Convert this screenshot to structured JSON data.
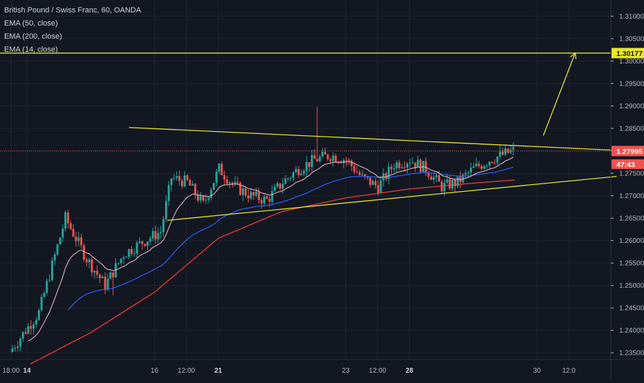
{
  "legend": {
    "symbol": "British Pound / Swiss Franc, 60, OANDA",
    "ema_50": "EMA (50, close)",
    "ema_200": "EMA (200, close)",
    "ema_14": "EMA (14, close)"
  },
  "colors": {
    "background": "#131722",
    "grid": "#1f2430",
    "up_candle": "#26a69a",
    "down_candle": "#ef5350",
    "ema_14": "#d7a9b0",
    "ema_50": "#2962ff",
    "ema_200": "#e53935",
    "drawings": "#e8e82a",
    "current_price_line": "#ef5350",
    "axis_text": "#b2b5be"
  },
  "price_badges": {
    "target": "1.30177",
    "last_price": "1.27995",
    "countdown": "47:43"
  },
  "chart_data": {
    "type": "candlestick",
    "title": "British Pound / Swiss Franc, 60, OANDA",
    "xlabel": "",
    "ylabel": "",
    "x_ticks": [
      {
        "label": "18:00",
        "day": 0.75,
        "bold": false
      },
      {
        "label": "14",
        "day": 1,
        "bold": true
      },
      {
        "label": "16",
        "day": 3,
        "bold": false
      },
      {
        "label": "12:00",
        "day": 3.5,
        "bold": false
      },
      {
        "label": "21",
        "day": 4,
        "bold": true
      },
      {
        "label": "23",
        "day": 6,
        "bold": false
      },
      {
        "label": "12:00",
        "day": 6.5,
        "bold": false
      },
      {
        "label": "28",
        "day": 7,
        "bold": true
      },
      {
        "label": "30",
        "day": 9,
        "bold": false
      },
      {
        "label": "12:0",
        "day": 9.5,
        "bold": false
      }
    ],
    "y_ticks": [
      "1.31000",
      "1.30500",
      "1.30000",
      "1.29500",
      "1.29000",
      "1.28500",
      "1.28000",
      "1.27500",
      "1.27000",
      "1.26500",
      "1.26000",
      "1.25500",
      "1.25000",
      "1.24500",
      "1.24000",
      "1.23500"
    ],
    "ylim": [
      1.2335,
      1.3136
    ],
    "candles": {
      "count": 190,
      "start_day": 0.75,
      "end_day": 8.65,
      "keypoints": [
        [
          0,
          1.236
        ],
        [
          10,
          1.244
        ],
        [
          20,
          1.265
        ],
        [
          28,
          1.256
        ],
        [
          35,
          1.25
        ],
        [
          42,
          1.257
        ],
        [
          50,
          1.26
        ],
        [
          56,
          1.262
        ],
        [
          60,
          1.274
        ],
        [
          66,
          1.273
        ],
        [
          72,
          1.268
        ],
        [
          78,
          1.276
        ],
        [
          84,
          1.272
        ],
        [
          90,
          1.27
        ],
        [
          96,
          1.269
        ],
        [
          102,
          1.273
        ],
        [
          108,
          1.276
        ],
        [
          114,
          1.278
        ],
        [
          120,
          1.279
        ],
        [
          126,
          1.278
        ],
        [
          132,
          1.274
        ],
        [
          138,
          1.272
        ],
        [
          144,
          1.277
        ],
        [
          150,
          1.278
        ],
        [
          156,
          1.276
        ],
        [
          162,
          1.272
        ],
        [
          168,
          1.273
        ],
        [
          174,
          1.276
        ],
        [
          180,
          1.278
        ],
        [
          189,
          1.28005
        ]
      ]
    },
    "ema_14": {
      "name": "EMA (14, close)",
      "period": 14
    },
    "ema_50": {
      "name": "EMA (50, close)",
      "period": 50
    },
    "ema_200": {
      "name": "EMA (200, close)",
      "points": [
        [
          1.05,
          1.2325
        ],
        [
          2,
          1.2395
        ],
        [
          3,
          1.2485
        ],
        [
          3.5,
          1.2545
        ],
        [
          4,
          1.2605
        ],
        [
          5,
          1.2665
        ],
        [
          6,
          1.2695
        ],
        [
          7,
          1.2715
        ],
        [
          8,
          1.2728
        ],
        [
          8.65,
          1.2735
        ]
      ]
    },
    "triangle": {
      "upper": [
        [
          2.6,
          1.2852
        ],
        [
          10.25,
          1.2801
        ]
      ],
      "lower": [
        [
          3.2,
          1.2645
        ],
        [
          10.25,
          1.2743
        ]
      ]
    },
    "projection": [
      [
        9.1,
        1.2834
      ],
      [
        9.6,
        1.3018
      ]
    ],
    "target_level": 1.30177,
    "last_price": 1.27995
  }
}
